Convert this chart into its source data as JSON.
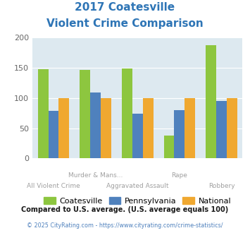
{
  "title_line1": "2017 Coatesville",
  "title_line2": "Violent Crime Comparison",
  "categories": [
    "All Violent Crime",
    "Murder & Mans...",
    "Aggravated Assault",
    "Rape",
    "Robbery"
  ],
  "cat_labels_row1": [
    "",
    "Murder & Mans...",
    "",
    "Rape",
    ""
  ],
  "cat_labels_row2": [
    "All Violent Crime",
    "",
    "Aggravated Assault",
    "",
    "Robbery"
  ],
  "coatesville": [
    147,
    146,
    149,
    38,
    187
  ],
  "pennsylvania": [
    79,
    109,
    74,
    80,
    95
  ],
  "national": [
    100,
    100,
    100,
    100,
    100
  ],
  "color_coatesville": "#8dc63f",
  "color_pennsylvania": "#4f81bd",
  "color_national": "#f0a830",
  "ylim": [
    0,
    200
  ],
  "yticks": [
    0,
    50,
    100,
    150,
    200
  ],
  "bg_color": "#dde9f0",
  "title_color": "#2e75b6",
  "xlabel_color": "#a0a0a0",
  "legend_labels": [
    "Coatesville",
    "Pennsylvania",
    "National"
  ],
  "footnote1": "Compared to U.S. average. (U.S. average equals 100)",
  "footnote2": "© 2025 CityRating.com - https://www.cityrating.com/crime-statistics/",
  "footnote1_color": "#1a1a1a",
  "footnote2_color": "#4f81bd"
}
